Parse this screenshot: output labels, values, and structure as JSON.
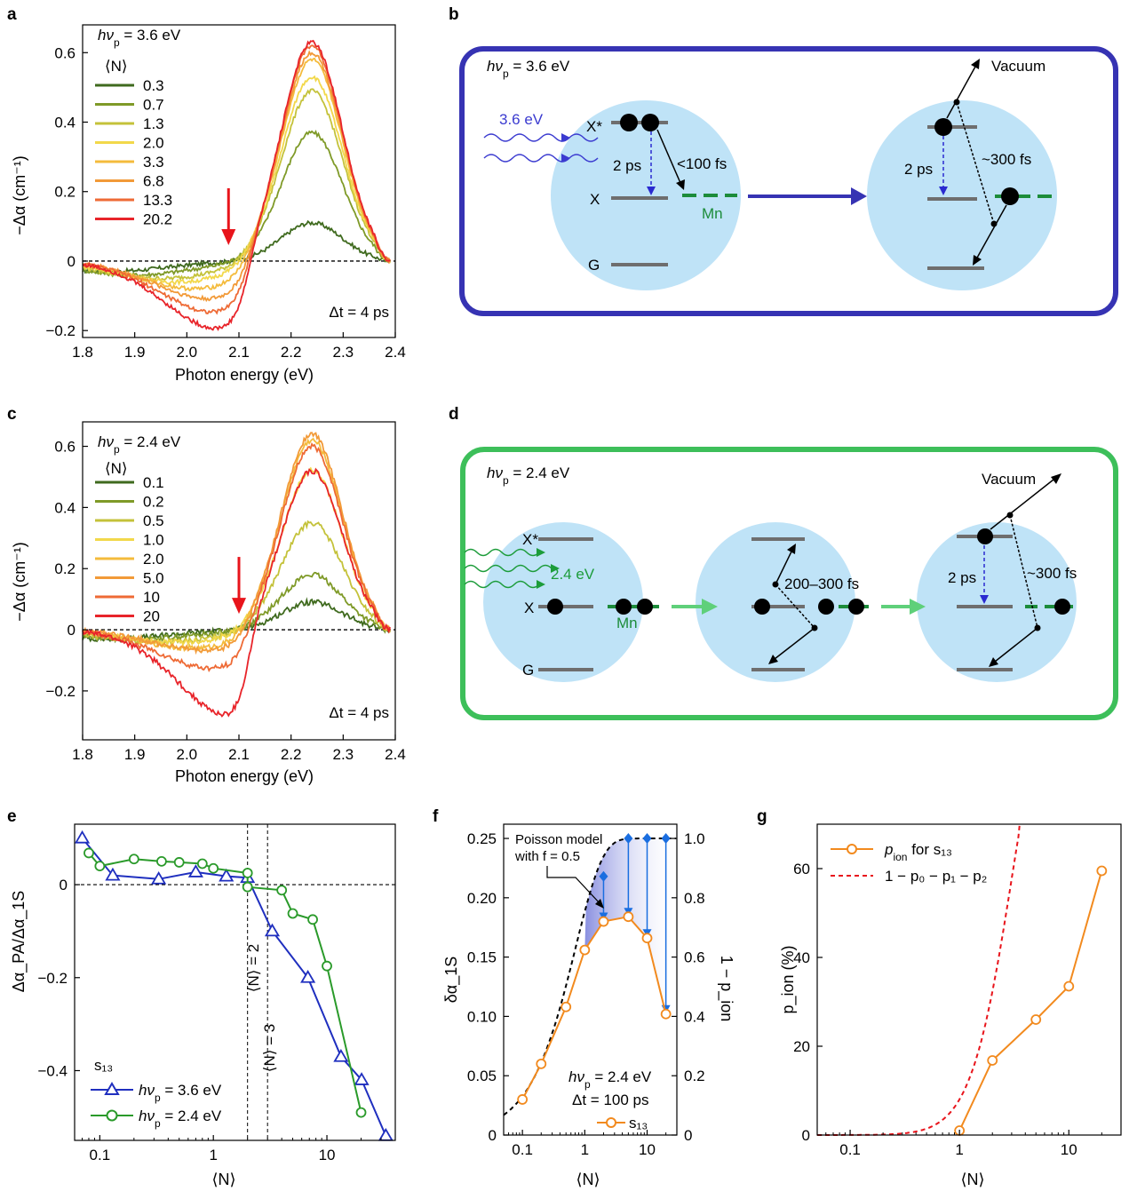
{
  "panels": {
    "a": {
      "label": "a",
      "annotation_pump": "hν",
      "annotation_pump_sub": "p",
      "annotation_pump_val": " = 3.6 eV",
      "annotation_dt": "Δt = 4 ps",
      "legend_title": "⟨N⟩",
      "xlabel": "Photon energy (eV)",
      "ylabel": "−Δα (cm⁻¹)",
      "arrow_color": "#e8141b"
    },
    "b": {
      "label": "b",
      "frame_color": "#3633b3",
      "pump": "hν",
      "pump_sub": "p",
      "pump_val": " = 3.6 eV",
      "photon": "3.6 eV",
      "xstar": "X*",
      "x": "X",
      "g": "G",
      "mn": "Mn",
      "t1": "2 ps",
      "t2": "<100 fs",
      "t3": "2 ps",
      "t4": "~300 fs",
      "vacuum": "Vacuum"
    },
    "c": {
      "label": "c",
      "annotation_pump": "hν",
      "annotation_pump_sub": "p",
      "annotation_pump_val": " = 2.4 eV",
      "annotation_dt": "Δt = 4 ps",
      "legend_title": "⟨N⟩",
      "xlabel": "Photon energy (eV)",
      "ylabel": "−Δα (cm⁻¹)"
    },
    "d": {
      "label": "d",
      "frame_color": "#3dbf5a",
      "pump": "hν",
      "pump_sub": "p",
      "pump_val": " = 2.4 eV",
      "photon": "2.4 eV",
      "xstar": "X*",
      "x": "X",
      "g": "G",
      "mn": "Mn",
      "t1": "200–300 fs",
      "t2": "2 ps",
      "t3": "~300 fs",
      "vacuum": "Vacuum"
    },
    "e": {
      "label": "e",
      "xlabel": "⟨N⟩",
      "ylabel": "Δα_PA/Δα_1S",
      "vline1": "⟨N⟩ = 2",
      "vline2": "⟨N⟩ = 3",
      "legend_title": "s₁₃",
      "legend_1": "hν",
      "legend_1_val": " = 3.6 eV",
      "legend_2": "hν",
      "legend_2_val": " = 2.4 eV"
    },
    "f": {
      "label": "f",
      "xlabel": "⟨N⟩",
      "ylabel": "δα_1S",
      "ylabel_right": "1 − p_ion",
      "model_label_1": "Poisson model",
      "model_label_2": "with f = 0.5",
      "anno_pump": "hν",
      "anno_pump_val": " = 2.4 eV",
      "anno_dt": "Δt = 100 ps",
      "legend": "s₁₃"
    },
    "g": {
      "label": "g",
      "xlabel": "⟨N⟩",
      "ylabel": "p_ion (%)",
      "legend_1": "p",
      "legend_1_sub": "ion",
      "legend_1_rest": " for s₁₃",
      "legend_2": "1 − p₀ − p₁ − p₂"
    }
  },
  "chart_data": [
    {
      "id": "a",
      "type": "line",
      "xlim": [
        1.8,
        2.4
      ],
      "ylim": [
        -0.22,
        0.68
      ],
      "xticks": [
        1.8,
        1.9,
        2.0,
        2.1,
        2.2,
        2.3,
        2.4
      ],
      "xtick_labels": [
        "1.8",
        "1.9",
        "2.0",
        "2.1",
        "2.2",
        "2.3",
        "2.4"
      ],
      "yticks": [
        -0.2,
        0,
        0.2,
        0.4,
        0.6
      ],
      "ytick_labels": [
        "−0.2",
        "0",
        "0.2",
        "0.4",
        "0.6"
      ],
      "series": [
        {
          "name": "0.3",
          "color": "#3f6a1e",
          "peak": 0.11,
          "dip": -0.03,
          "dipx": 1.85
        },
        {
          "name": "0.7",
          "color": "#7f9a28",
          "peak": 0.37,
          "dip": -0.04,
          "dipx": 1.9
        },
        {
          "name": "1.3",
          "color": "#c4c23a",
          "peak": 0.49,
          "dip": -0.05,
          "dipx": 1.95
        },
        {
          "name": "2.0",
          "color": "#f2d84a",
          "peak": 0.53,
          "dip": -0.06,
          "dipx": 1.98
        },
        {
          "name": "3.3",
          "color": "#f4bb3c",
          "peak": 0.58,
          "dip": -0.08,
          "dipx": 2.02
        },
        {
          "name": "6.8",
          "color": "#f29a38",
          "peak": 0.6,
          "dip": -0.11,
          "dipx": 2.05
        },
        {
          "name": "13.3",
          "color": "#ee6a35",
          "peak": 0.62,
          "dip": -0.15,
          "dipx": 2.06
        },
        {
          "name": "20.2",
          "color": "#e8242a",
          "peak": 0.63,
          "dip": -0.2,
          "dipx": 2.07
        }
      ],
      "arrow_x": 2.08
    },
    {
      "id": "c",
      "type": "line",
      "xlim": [
        1.8,
        2.4
      ],
      "ylim": [
        -0.36,
        0.68
      ],
      "xticks": [
        1.8,
        1.9,
        2.0,
        2.1,
        2.2,
        2.3,
        2.4
      ],
      "xtick_labels": [
        "1.8",
        "1.9",
        "2.0",
        "2.1",
        "2.2",
        "2.3",
        "2.4"
      ],
      "yticks": [
        -0.2,
        0,
        0.2,
        0.4,
        0.6
      ],
      "ytick_labels": [
        "−0.2",
        "0",
        "0.2",
        "0.4",
        "0.6"
      ],
      "series": [
        {
          "name": "0.1",
          "color": "#3f6a1e",
          "peak": 0.09,
          "dip": -0.03,
          "dipx": 1.85
        },
        {
          "name": "0.2",
          "color": "#7f9a28",
          "peak": 0.18,
          "dip": -0.03,
          "dipx": 1.9
        },
        {
          "name": "0.5",
          "color": "#c4c23a",
          "peak": 0.35,
          "dip": -0.04,
          "dipx": 1.95
        },
        {
          "name": "1.0",
          "color": "#f2d84a",
          "peak": 0.52,
          "dip": -0.04,
          "dipx": 1.98
        },
        {
          "name": "2.0",
          "color": "#f4bb3c",
          "peak": 0.62,
          "dip": -0.06,
          "dipx": 2.02
        },
        {
          "name": "5.0",
          "color": "#f29a38",
          "peak": 0.64,
          "dip": -0.07,
          "dipx": 2.05
        },
        {
          "name": "10",
          "color": "#ee6a35",
          "peak": 0.6,
          "dip": -0.13,
          "dipx": 2.06
        },
        {
          "name": "20",
          "color": "#e8242a",
          "peak": 0.52,
          "dip": -0.3,
          "dipx": 2.1
        }
      ],
      "arrow_x": 2.1
    },
    {
      "id": "e",
      "type": "line",
      "xscale": "log",
      "xlim": [
        0.06,
        40
      ],
      "ylim": [
        -0.55,
        0.13
      ],
      "xticks": [
        0.1,
        1,
        10
      ],
      "xtick_labels": [
        "0.1",
        "1",
        "10"
      ],
      "yticks": [
        -0.4,
        -0.2,
        0
      ],
      "ytick_labels": [
        "−0.4",
        "−0.2",
        "0"
      ],
      "series": [
        {
          "name": "hνp = 3.6 eV",
          "color": "#1f2fbf",
          "marker": "triangle",
          "x": [
            0.07,
            0.13,
            0.33,
            0.7,
            1.3,
            2.0,
            3.3,
            6.8,
            13.3,
            20.2,
            33
          ],
          "y": [
            0.1,
            0.02,
            0.012,
            0.027,
            0.018,
            0.015,
            -0.1,
            -0.2,
            -0.37,
            -0.42,
            -0.54
          ]
        },
        {
          "name": "hνp = 2.4 eV",
          "color": "#2a9a2a",
          "marker": "circle",
          "x": [
            0.08,
            0.1,
            0.2,
            0.35,
            0.5,
            0.8,
            1.0,
            2.0,
            2.0,
            4.0,
            5.0,
            7.5,
            10,
            20
          ],
          "y": [
            0.068,
            0.04,
            0.055,
            0.05,
            0.048,
            0.045,
            0.035,
            0.025,
            -0.005,
            -0.012,
            -0.062,
            -0.075,
            -0.175,
            -0.49
          ]
        }
      ],
      "vlines": [
        2,
        3
      ]
    },
    {
      "id": "f",
      "type": "line",
      "xscale": "log",
      "xlim": [
        0.05,
        30
      ],
      "ylim": [
        0,
        0.262
      ],
      "ylim_right": [
        0,
        1.048
      ],
      "xticks": [
        0.1,
        1,
        10
      ],
      "xtick_labels": [
        "0.1",
        "1",
        "10"
      ],
      "yticks": [
        0,
        0.05,
        0.1,
        0.15,
        0.2,
        0.25
      ],
      "ytick_labels": [
        "0",
        "0.05",
        "0.10",
        "0.15",
        "0.20",
        "0.25"
      ],
      "yticks_right": [
        0,
        0.2,
        0.4,
        0.6,
        0.8,
        1.0
      ],
      "ytick_labels_right": [
        "0",
        "0.2",
        "0.4",
        "0.6",
        "0.8",
        "1.0"
      ],
      "series": [
        {
          "name": "s13",
          "color": "#f28a1e",
          "marker": "circle",
          "x": [
            0.1,
            0.2,
            0.5,
            1.0,
            2.0,
            5.0,
            10,
            20
          ],
          "y": [
            0.03,
            0.06,
            0.108,
            0.156,
            0.18,
            0.184,
            0.166,
            0.102
          ]
        },
        {
          "name": "model",
          "color": "#000000",
          "dashed": true,
          "model": "poisson_f0.5"
        },
        {
          "name": "diamonds",
          "color": "#1a6ee0",
          "marker": "diamond",
          "x": [
            2.0,
            5.0,
            10,
            20
          ],
          "y": [
            0.218,
            0.25,
            0.25,
            0.25
          ]
        }
      ]
    },
    {
      "id": "g",
      "type": "line",
      "xscale": "log",
      "xlim": [
        0.05,
        30
      ],
      "ylim": [
        0,
        70
      ],
      "xticks": [
        0.1,
        1,
        10
      ],
      "xtick_labels": [
        "0.1",
        "1",
        "10"
      ],
      "yticks": [
        0,
        20,
        40,
        60
      ],
      "ytick_labels": [
        "0",
        "20",
        "40",
        "60"
      ],
      "series": [
        {
          "name": "pion for s13",
          "color": "#f28a1e",
          "marker": "circle",
          "x": [
            1.0,
            2.0,
            5.0,
            10,
            20
          ],
          "y": [
            1,
            16.8,
            26,
            33.5,
            59.5
          ]
        },
        {
          "name": "1 − p0 − p1 − p2",
          "color": "#e8141b",
          "dashed": true,
          "model": "poisson_tail3"
        }
      ]
    }
  ]
}
